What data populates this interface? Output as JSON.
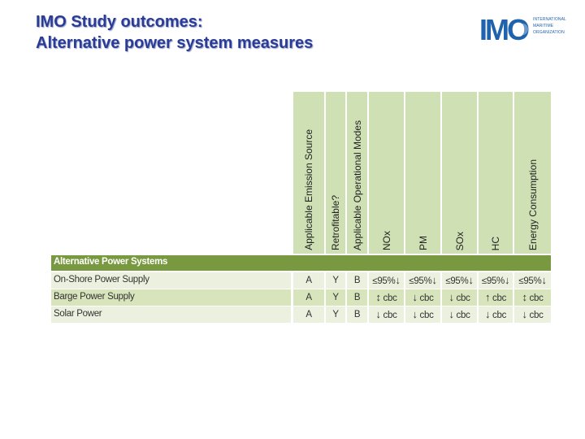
{
  "slide": {
    "title_line1": "IMO Study outcomes:",
    "title_line2": "Alternative power system measures"
  },
  "logo": {
    "text": "IMO",
    "org_line1": "INTERNATIONAL",
    "org_line2": "MARITIME",
    "org_line3": "ORGANIZATION",
    "color": "#1f63ae"
  },
  "table": {
    "columns": [
      "Applicable Emission Source",
      "Retrofitable?",
      "Applicable Operational Modes",
      "NOx",
      "PM",
      "SOx",
      "HC",
      "Energy Consumption"
    ],
    "section_label": "Alternative Power Systems",
    "rows": [
      {
        "label": "On-Shore Power Supply",
        "cells": [
          {
            "text": "A"
          },
          {
            "text": "Y"
          },
          {
            "text": "B"
          },
          {
            "text": "≤95%",
            "arrow": "↓"
          },
          {
            "text": "≤95%",
            "arrow": "↓"
          },
          {
            "text": "≤95%",
            "arrow": "↓"
          },
          {
            "text": "≤95%",
            "arrow": "↓"
          },
          {
            "text": "≤95%",
            "arrow": "↓"
          }
        ]
      },
      {
        "label": "Barge Power Supply",
        "cells": [
          {
            "text": "A"
          },
          {
            "text": "Y"
          },
          {
            "text": "B"
          },
          {
            "arrow": "↕",
            "text": "cbc"
          },
          {
            "arrow": "↓",
            "text": "cbc"
          },
          {
            "arrow": "↓",
            "text": "cbc"
          },
          {
            "arrow": "↑",
            "text": "cbc"
          },
          {
            "arrow": "↕",
            "text": "cbc"
          }
        ]
      },
      {
        "label": "Solar Power",
        "cells": [
          {
            "text": "A"
          },
          {
            "text": "Y"
          },
          {
            "text": "B"
          },
          {
            "arrow": "↓",
            "text": "cbc"
          },
          {
            "arrow": "↓",
            "text": "cbc"
          },
          {
            "arrow": "↓",
            "text": "cbc"
          },
          {
            "arrow": "↓",
            "text": "cbc"
          },
          {
            "arrow": "↓",
            "text": "cbc"
          }
        ]
      }
    ],
    "colors": {
      "header_bg": "#cfe0b4",
      "section_bg": "#78993f",
      "row_odd": "#ebf1de",
      "row_even": "#d7e4bc"
    }
  }
}
